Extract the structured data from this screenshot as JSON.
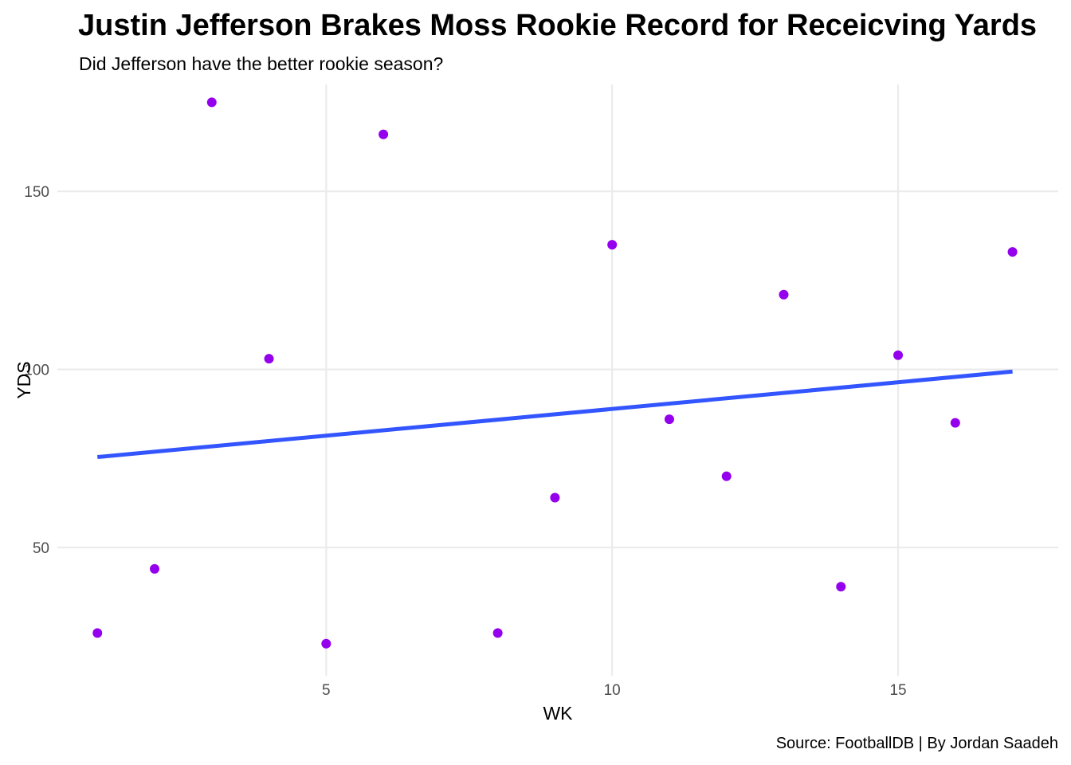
{
  "chart_data": {
    "type": "scatter",
    "title": "Justin Jefferson Brakes Moss Rookie Record for Receicving Yards",
    "subtitle": "Did Jefferson have the better rookie season?",
    "caption": "Source: FootballDB | By Jordan Saadeh",
    "xlabel": "WK",
    "ylabel": "YDS",
    "xlim": [
      0.3,
      17.8
    ],
    "ylim": [
      14,
      180
    ],
    "x_ticks": [
      5,
      10,
      15
    ],
    "y_ticks": [
      50,
      100,
      150
    ],
    "grid": true,
    "series": [
      {
        "x": [
          1,
          2,
          3,
          4,
          5,
          6,
          8,
          9,
          10,
          11,
          12,
          13,
          14,
          15,
          16,
          17
        ],
        "y": [
          26,
          44,
          175,
          103,
          23,
          166,
          26,
          64,
          135,
          86,
          70,
          121,
          39,
          104,
          85,
          133
        ],
        "color": "#9400ee"
      }
    ],
    "trend_line": {
      "type": "linear",
      "x": [
        1,
        17
      ],
      "y": [
        75.4,
        99.4
      ],
      "color": "#3355ff"
    }
  }
}
